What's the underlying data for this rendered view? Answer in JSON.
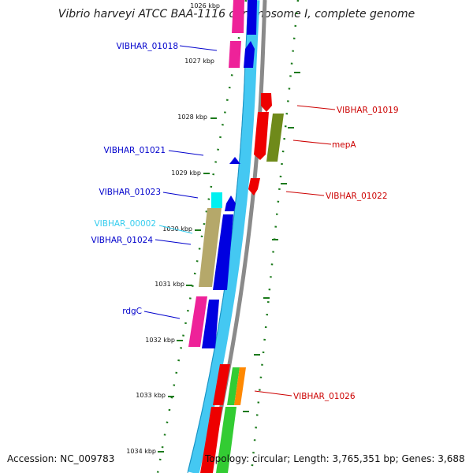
{
  "title": "Vibrio harveyi ATCC BAA-1116 chromosome I, complete genome",
  "footer": {
    "accession": "Accession: NC_009783",
    "topology": "Topology: circular; Length: 3,765,351 bp; Genes: 3,688"
  },
  "colors": {
    "forward_label": "#0000cc",
    "reverse_label": "#cc0000",
    "rna_label": "#33ccee",
    "backbone": "#888888",
    "tick": "#1b7a1b"
  },
  "ruler_labels": [
    "1026 kbp",
    "1027 kbp",
    "1028 kbp",
    "1029 kbp",
    "1030 kbp",
    "1031 kbp",
    "1032 kbp",
    "1033 kbp",
    "1034 kbp"
  ],
  "gene_labels": {
    "VIBHAR_01018": "VIBHAR_01018",
    "VIBHAR_01019": "VIBHAR_01019",
    "mepA": "mepA",
    "VIBHAR_01021": "VIBHAR_01021",
    "VIBHAR_01022": "VIBHAR_01022",
    "VIBHAR_01023": "VIBHAR_01023",
    "VIBHAR_00002": "VIBHAR_00002",
    "VIBHAR_01024": "VIBHAR_01024",
    "rdgC": "rdgC",
    "VIBHAR_01026": "VIBHAR_01026"
  }
}
